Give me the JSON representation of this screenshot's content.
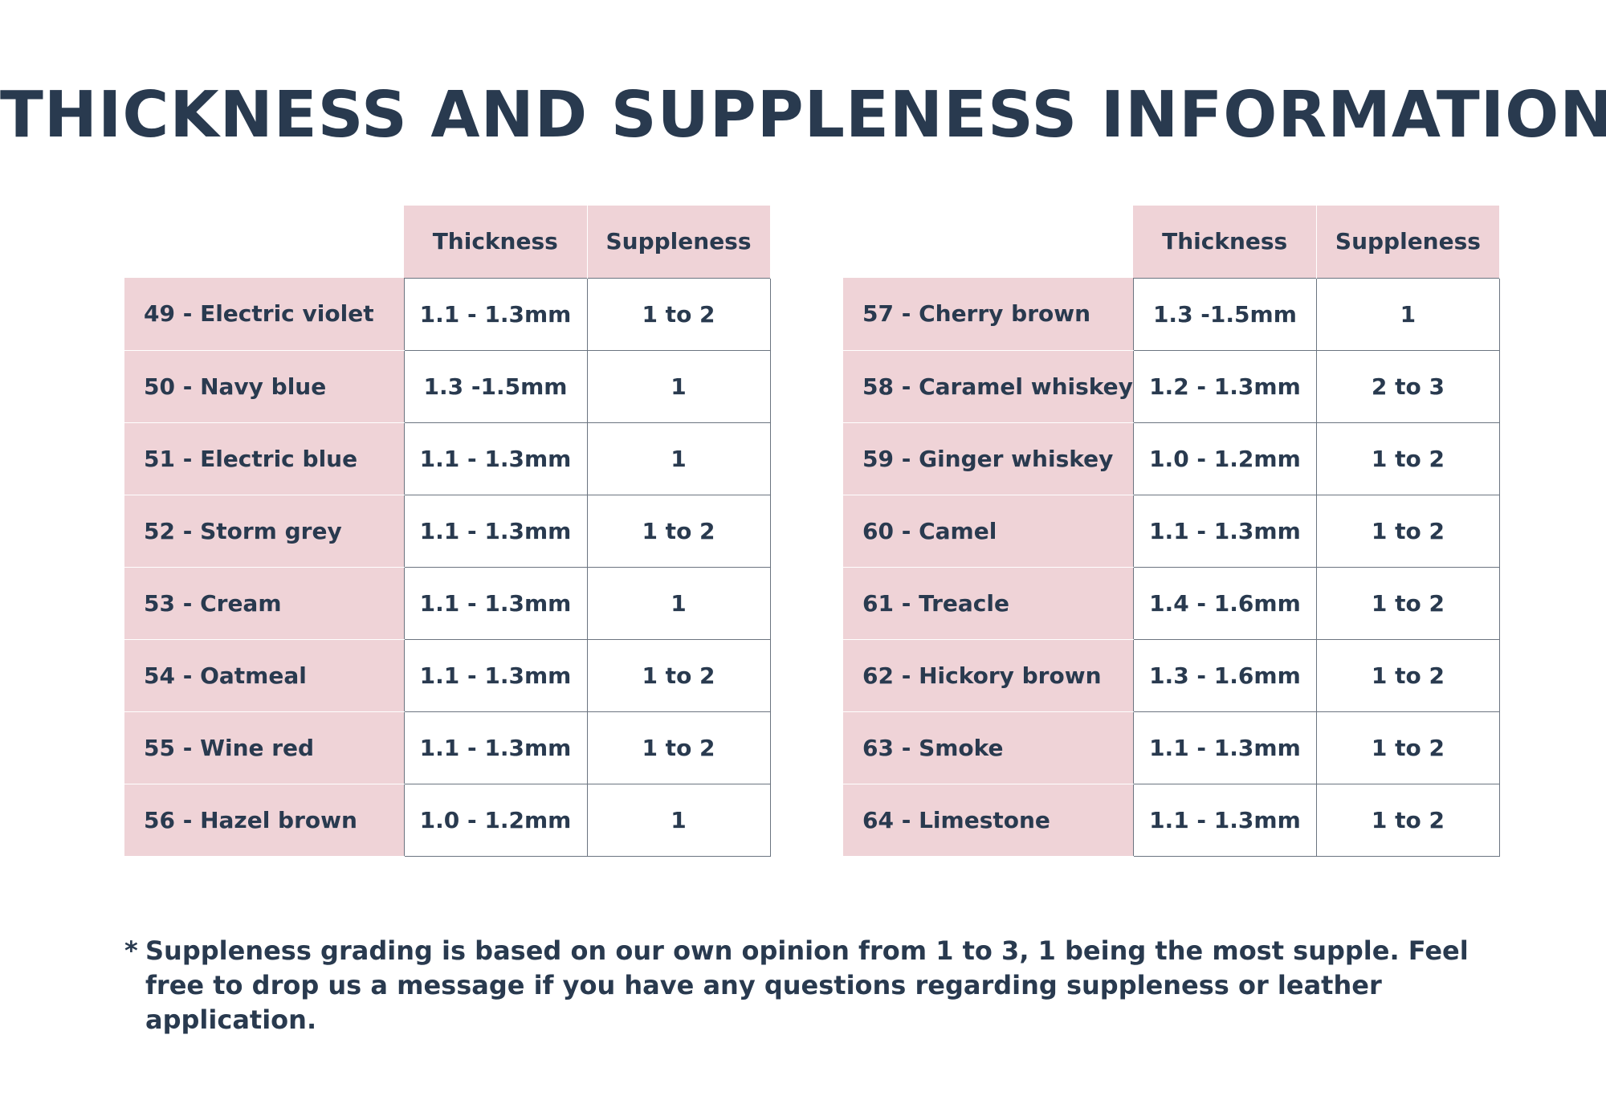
{
  "title": "THICKNESS AND SUPPLENESS INFORMATION",
  "columns": {
    "thickness": "Thickness",
    "suppleness": "Suppleness"
  },
  "left_table": [
    {
      "name": "49 - Electric violet",
      "thickness": "1.1 - 1.3mm",
      "suppleness": "1 to 2"
    },
    {
      "name": "50 - Navy blue",
      "thickness": "1.3 -1.5mm",
      "suppleness": "1"
    },
    {
      "name": "51 - Electric blue",
      "thickness": "1.1 - 1.3mm",
      "suppleness": "1"
    },
    {
      "name": "52 - Storm grey",
      "thickness": "1.1 - 1.3mm",
      "suppleness": "1 to 2"
    },
    {
      "name": "53 - Cream",
      "thickness": "1.1 - 1.3mm",
      "suppleness": "1"
    },
    {
      "name": "54 - Oatmeal",
      "thickness": "1.1 - 1.3mm",
      "suppleness": "1 to 2"
    },
    {
      "name": "55 - Wine red",
      "thickness": "1.1 - 1.3mm",
      "suppleness": "1 to 2"
    },
    {
      "name": "56 - Hazel brown",
      "thickness": "1.0 - 1.2mm",
      "suppleness": "1"
    }
  ],
  "right_table": [
    {
      "name": "57 - Cherry brown",
      "thickness": "1.3 -1.5mm",
      "suppleness": "1"
    },
    {
      "name": "58 - Caramel whiskey",
      "thickness": "1.2 - 1.3mm",
      "suppleness": "2 to 3"
    },
    {
      "name": "59 - Ginger whiskey",
      "thickness": "1.0 - 1.2mm",
      "suppleness": "1 to 2"
    },
    {
      "name": "60 - Camel",
      "thickness": "1.1 - 1.3mm",
      "suppleness": "1 to 2"
    },
    {
      "name": "61 - Treacle",
      "thickness": "1.4 - 1.6mm",
      "suppleness": "1 to 2"
    },
    {
      "name": "62 - Hickory brown",
      "thickness": "1.3 - 1.6mm",
      "suppleness": "1 to 2"
    },
    {
      "name": "63 - Smoke",
      "thickness": "1.1 - 1.3mm",
      "suppleness": "1 to 2"
    },
    {
      "name": "64 - Limestone",
      "thickness": "1.1 - 1.3mm",
      "suppleness": "1 to 2"
    }
  ],
  "footnote": {
    "marker": "*",
    "text": "Suppleness grading is based on our own opinion from 1 to 3, 1 being the most supple. Feel free to drop us a message if you have any questions regarding suppleness or leather application."
  },
  "colors": {
    "text": "#293a4f",
    "header_fill": "#efd3d7",
    "grid_line": "#6b7480"
  }
}
